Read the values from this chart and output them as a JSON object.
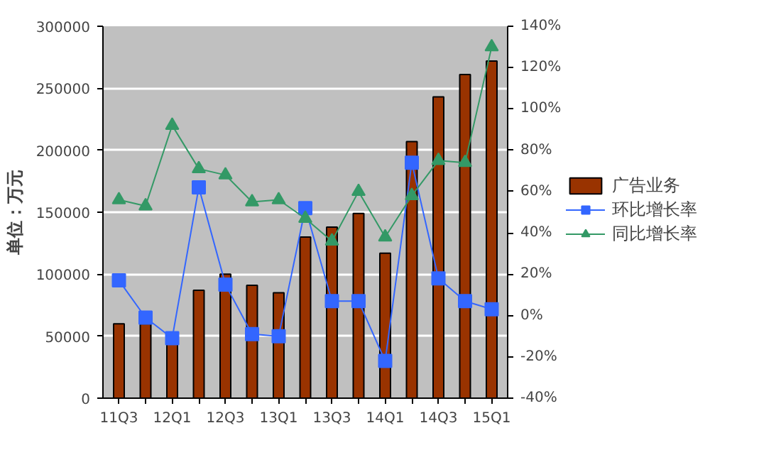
{
  "chart_data": {
    "type": "bar",
    "ylabel": "单位：万元",
    "categories": [
      "11Q3",
      null,
      "12Q1",
      null,
      "12Q3",
      null,
      "13Q1",
      null,
      "13Q3",
      null,
      "14Q1",
      null,
      "14Q3",
      null,
      "15Q1"
    ],
    "series": [
      {
        "name": "广告业务",
        "type": "bar",
        "color": "#993300",
        "values": [
          60000,
          60000,
          45000,
          87000,
          100000,
          91000,
          85000,
          130000,
          138000,
          149000,
          117000,
          207000,
          243000,
          261000,
          272000
        ]
      },
      {
        "name": "环比增长率",
        "type": "line",
        "axis": "y2",
        "marker": "square",
        "color": "#3366ff",
        "values": [
          17,
          -1,
          -11,
          62,
          15,
          -9,
          -10,
          52,
          7,
          7,
          -22,
          74,
          18,
          7,
          3
        ]
      },
      {
        "name": "同比增长率",
        "type": "line",
        "axis": "y2",
        "marker": "triangle",
        "color": "#339966",
        "values": [
          56,
          53,
          92,
          71,
          68,
          55,
          56,
          47,
          36,
          60,
          38,
          58,
          75,
          74,
          130
        ]
      }
    ],
    "ylim": [
      0,
      300000
    ],
    "yticks": [
      0,
      50000,
      100000,
      150000,
      200000,
      250000,
      300000
    ],
    "y2lim": [
      -40,
      140
    ],
    "y2ticks": [
      {
        "value": -40,
        "label": "-40%"
      },
      {
        "value": -20,
        "label": "-20%"
      },
      {
        "value": 0,
        "label": "0%"
      },
      {
        "value": 20,
        "label": "20%"
      },
      {
        "value": 40,
        "label": "40%"
      },
      {
        "value": 60,
        "label": "60%"
      },
      {
        "value": 80,
        "label": "80%"
      },
      {
        "value": 100,
        "label": "100%"
      },
      {
        "value": 120,
        "label": "120%"
      },
      {
        "value": 140,
        "label": "140%"
      }
    ],
    "grid": "y",
    "legend": "right"
  }
}
